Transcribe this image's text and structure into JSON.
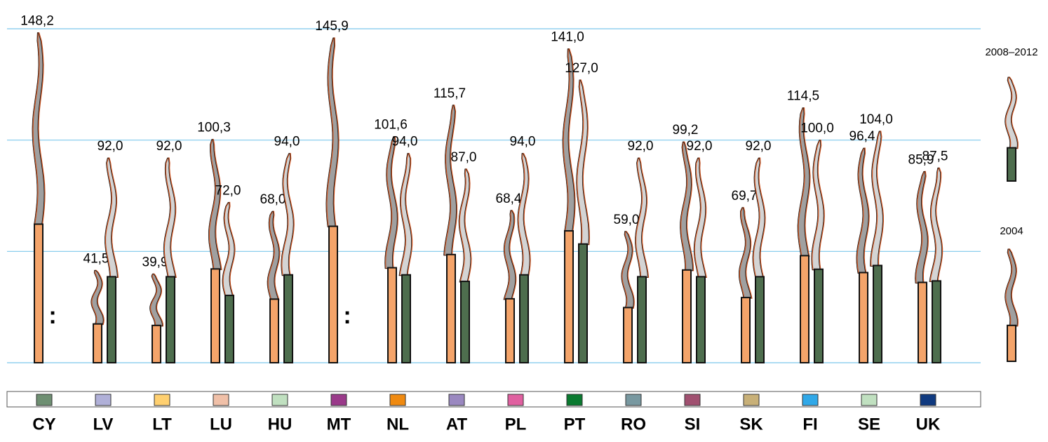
{
  "chart_data": {
    "type": "pictorial-bar",
    "categories": [
      "CY",
      "LV",
      "LT",
      "LU",
      "HU",
      "MT",
      "NL",
      "AT",
      "PL",
      "PT",
      "RO",
      "SI",
      "SK",
      "FI",
      "SE",
      "UK"
    ],
    "category_colors": [
      "#6e8f72",
      "#b0b0d8",
      "#ffd070",
      "#f0c0a8",
      "#c0e0c0",
      "#9a3a8a",
      "#f08a10",
      "#9a88c0",
      "#e060a0",
      "#0a7a30",
      "#7898a0",
      "#a05070",
      "#c8b078",
      "#30a8e8",
      "#c0e0c0",
      "#103a80"
    ],
    "series": [
      {
        "name": "2004",
        "color": "#f4a46a",
        "smoke_color": "#a0a0a0",
        "values": [
          148.2,
          41.5,
          39.9,
          100.3,
          68.0,
          145.9,
          101.6,
          115.7,
          68.4,
          141.0,
          59.0,
          99.2,
          69.7,
          114.5,
          96.4,
          85.9
        ],
        "value_labels": [
          "148,2",
          "41,5",
          "39,9",
          "100,3",
          "68,0",
          "145,9",
          "101,6",
          "115,7",
          "68,4",
          "141,0",
          "59,0",
          "99,2",
          "69,7",
          "114,5",
          "96,4",
          "85,9"
        ]
      },
      {
        "name": "2008–2012",
        "color": "#4e6e4e",
        "smoke_color": "#d4d4d4",
        "values": [
          null,
          92.0,
          92.0,
          72.0,
          94.0,
          null,
          94.0,
          87.0,
          94.0,
          127.0,
          92.0,
          92.0,
          92.0,
          100.0,
          104.0,
          87.5
        ],
        "value_labels": [
          ":",
          "92,0",
          "92,0",
          "72,0",
          "94,0",
          ":",
          "94,0",
          "87,0",
          "94,0",
          "127,0",
          "92,0",
          "92,0",
          "92,0",
          "100,0",
          "104,0",
          "87,5"
        ]
      }
    ],
    "ylim": [
      0,
      150
    ],
    "yticks": [
      0,
      50,
      100,
      150
    ],
    "grid": true
  }
}
